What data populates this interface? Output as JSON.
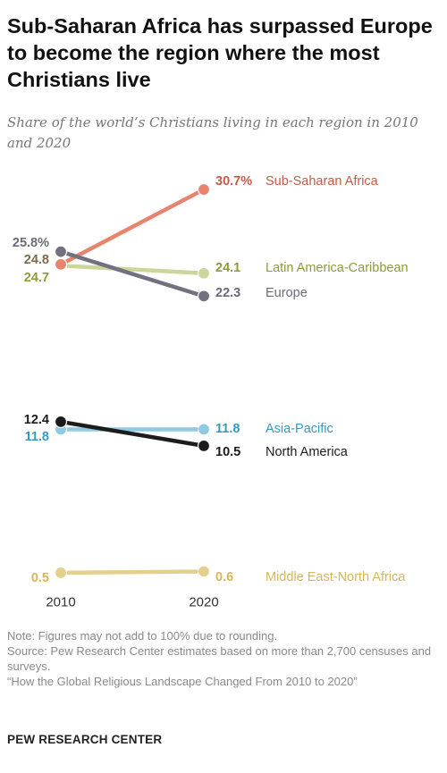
{
  "title": "Sub-Saharan Africa has surpassed Europe to become the region where the most Christians live",
  "subtitle": "Share of the world’s Christians living in each region in 2010 and 2020",
  "chart_data": {
    "type": "line",
    "chart_style": "slope",
    "x": [
      "2010",
      "2020"
    ],
    "ylim": [
      0,
      32
    ],
    "grid": false,
    "legend": "direct labels at right end of each line",
    "series": [
      {
        "name": "Sub-Saharan Africa",
        "values": [
          24.8,
          30.7
        ],
        "labels": [
          "24.8",
          "30.7%"
        ],
        "color": "#e8836e",
        "label_color": "#c65a45",
        "start_color": "#7d6a4a"
      },
      {
        "name": "Latin America-Caribbean",
        "values": [
          24.7,
          24.1
        ],
        "labels": [
          "24.7",
          "24.1"
        ],
        "color": "#cdd69a",
        "label_color": "#8e9a3c",
        "start_color": "#8e9a3c"
      },
      {
        "name": "Europe",
        "values": [
          25.8,
          22.3
        ],
        "labels": [
          "25.8%",
          "22.3"
        ],
        "color": "#71717f",
        "label_color": "#6a6a78",
        "start_color": "#6a6a78"
      },
      {
        "name": "Asia-Pacific",
        "values": [
          11.8,
          11.8
        ],
        "labels": [
          "11.8",
          "11.8"
        ],
        "color": "#8ecae2",
        "label_color": "#3a98c0",
        "start_color": "#3a98c0"
      },
      {
        "name": "North America",
        "values": [
          12.4,
          10.5
        ],
        "labels": [
          "12.4",
          "10.5"
        ],
        "color": "#1c1c1c",
        "label_color": "#1c1c1c",
        "start_color": "#1c1c1c"
      },
      {
        "name": "Middle East-North Africa",
        "values": [
          0.5,
          0.6
        ],
        "labels": [
          "0.5",
          "0.6"
        ],
        "color": "#e3cf8e",
        "label_color": "#d6b75a",
        "start_color": "#d6b75a"
      }
    ]
  },
  "notes": {
    "note": "Note: Figures may not add to 100% due to rounding.",
    "source": "Source: Pew Research Center estimates based on more than 2,700 censuses and surveys.",
    "report": "“How the Global Religious Landscape Changed From 2010 to 2020”"
  },
  "brand": "PEW RESEARCH CENTER"
}
